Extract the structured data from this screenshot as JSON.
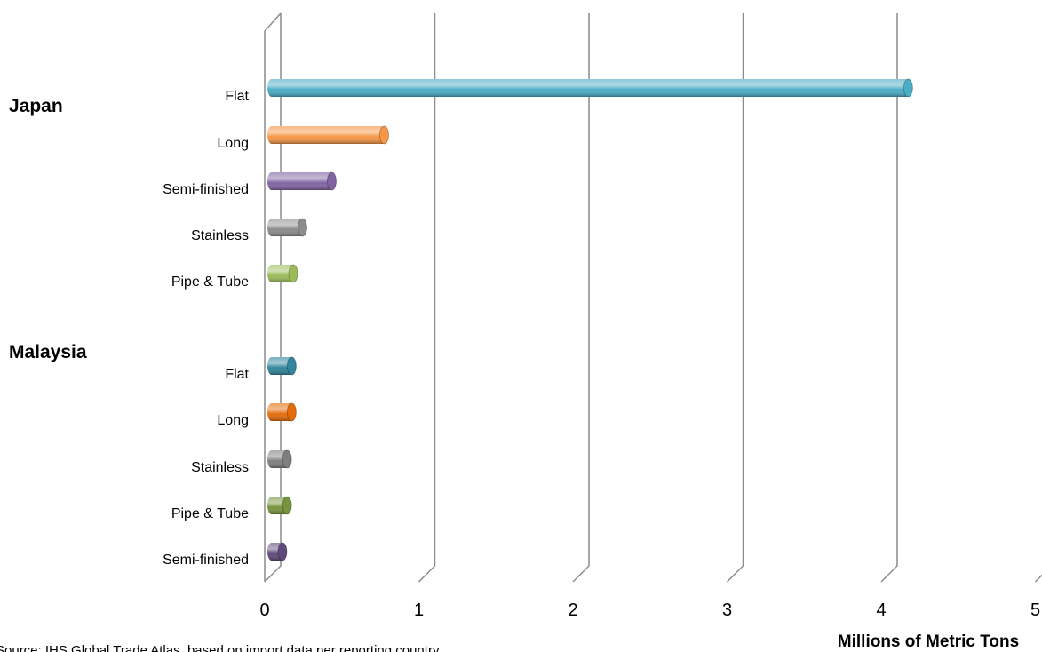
{
  "chart_data": {
    "type": "bar",
    "orientation": "horizontal",
    "style": "3d-cylinder",
    "xlabel": "Millions of Metric Tons",
    "xlim": [
      0,
      5
    ],
    "x_ticks": [
      "0",
      "1",
      "2",
      "3",
      "4",
      "5"
    ],
    "grid": true,
    "source": "Source: IHS Global Trade Atlas, based on import data per reporting country",
    "groups": [
      {
        "name": "Japan",
        "bars": [
          {
            "label": "Flat",
            "value": 4.1,
            "color": "#4bacc6"
          },
          {
            "label": "Long",
            "value": 0.7,
            "color": "#f79646"
          },
          {
            "label": "Semi-finished",
            "value": 0.36,
            "color": "#8064a2"
          },
          {
            "label": "Stainless",
            "value": 0.17,
            "color": "#8c8c8c"
          },
          {
            "label": "Pipe & Tube",
            "value": 0.11,
            "color": "#9bbb59"
          }
        ]
      },
      {
        "name": "Malaysia",
        "bars": [
          {
            "label": "Flat",
            "value": 0.1,
            "color": "#31859c"
          },
          {
            "label": "Long",
            "value": 0.1,
            "color": "#e46c0a"
          },
          {
            "label": "Stainless",
            "value": 0.07,
            "color": "#7f7f7f"
          },
          {
            "label": "Pipe & Tube",
            "value": 0.07,
            "color": "#77933c"
          },
          {
            "label": "Semi-finished",
            "value": 0.04,
            "color": "#5f497a"
          }
        ]
      }
    ]
  }
}
